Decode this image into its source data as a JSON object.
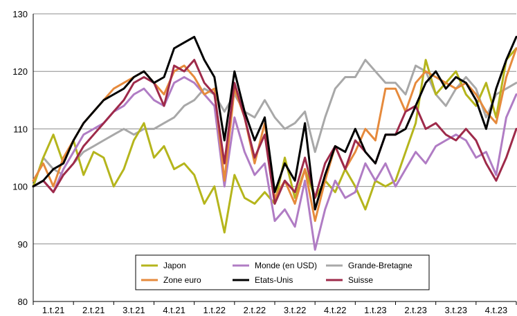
{
  "chart_data": {
    "type": "line",
    "title": "",
    "xlabel": "",
    "ylabel": "",
    "ylim": [
      80,
      130
    ],
    "yticks": [
      80,
      90,
      100,
      110,
      120,
      130
    ],
    "x_categories": [
      "1.t.21",
      "2.t.21",
      "3.t.21",
      "4.t.21",
      "1.t.22",
      "2.t.22",
      "3.t.22",
      "4.t.22",
      "1.t.23",
      "2.t.23",
      "3.t.23",
      "4.t.23"
    ],
    "x_range": [
      0,
      12
    ],
    "grid": "horizontal",
    "legend_position": "bottom-center",
    "series": [
      {
        "name": "Japon",
        "color": "#b5b51c",
        "x": [
          0,
          0.25,
          0.5,
          0.75,
          1,
          1.25,
          1.5,
          1.75,
          2,
          2.25,
          2.5,
          2.75,
          3,
          3.25,
          3.5,
          3.75,
          4,
          4.25,
          4.5,
          4.75,
          5,
          5.25,
          5.5,
          5.75,
          6,
          6.25,
          6.5,
          6.75,
          7,
          7.25,
          7.5,
          7.75,
          8,
          8.25,
          8.5,
          8.75,
          9,
          9.25,
          9.5,
          9.75,
          10,
          10.25,
          10.5,
          10.75,
          11,
          11.25,
          11.5,
          11.75,
          12
        ],
        "y": [
          100,
          105,
          109,
          104,
          108,
          102,
          106,
          105,
          100,
          103,
          108,
          111,
          105,
          107,
          103,
          104,
          102,
          97,
          100,
          92,
          102,
          98,
          97,
          99,
          97,
          105,
          98,
          103,
          98,
          101,
          99,
          103,
          100,
          96,
          101,
          100,
          101,
          106,
          111,
          122,
          116,
          118,
          120,
          116,
          114,
          118,
          112,
          122,
          124
        ]
      },
      {
        "name": "Zone euro",
        "color": "#e68a3c",
        "x": [
          0,
          0.25,
          0.5,
          0.75,
          1,
          1.25,
          1.5,
          1.75,
          2,
          2.25,
          2.5,
          2.75,
          3,
          3.25,
          3.5,
          3.75,
          4,
          4.25,
          4.5,
          4.75,
          5,
          5.25,
          5.5,
          5.75,
          6,
          6.25,
          6.5,
          6.75,
          7,
          7.25,
          7.5,
          7.75,
          8,
          8.25,
          8.5,
          8.75,
          9,
          9.25,
          9.5,
          9.75,
          10,
          10.25,
          10.5,
          10.75,
          11,
          11.25,
          11.5,
          11.75,
          12
        ],
        "y": [
          101,
          104,
          100,
          105,
          108,
          111,
          113,
          115,
          117,
          118,
          119,
          120,
          118,
          116,
          120,
          121,
          119,
          116,
          117,
          101,
          117,
          112,
          104,
          111,
          98,
          101,
          97,
          103,
          94,
          101,
          107,
          103,
          106,
          110,
          108,
          117,
          117,
          113,
          118,
          120,
          119,
          118,
          117,
          118,
          116,
          113,
          111,
          119,
          124
        ]
      },
      {
        "name": "Monde (en USD)",
        "color": "#b07cc4",
        "x": [
          0,
          0.25,
          0.5,
          0.75,
          1,
          1.25,
          1.5,
          1.75,
          2,
          2.25,
          2.5,
          2.75,
          3,
          3.25,
          3.5,
          3.75,
          4,
          4.25,
          4.5,
          4.75,
          5,
          5.25,
          5.5,
          5.75,
          6,
          6.25,
          6.5,
          6.75,
          7,
          7.25,
          7.5,
          7.75,
          8,
          8.25,
          8.5,
          8.75,
          9,
          9.25,
          9.5,
          9.75,
          10,
          10.25,
          10.5,
          10.75,
          11,
          11.25,
          11.5,
          11.75,
          12
        ],
        "y": [
          100,
          101,
          99,
          103,
          106,
          109,
          110,
          111,
          113,
          114,
          116,
          117,
          115,
          114,
          118,
          119,
          118,
          116,
          114,
          100,
          112,
          106,
          102,
          104,
          94,
          96,
          93,
          101,
          89,
          96,
          101,
          98,
          99,
          104,
          101,
          104,
          100,
          103,
          106,
          104,
          107,
          108,
          109,
          108,
          105,
          106,
          102,
          112,
          116
        ]
      },
      {
        "name": "Etats-Unis",
        "color": "#000000",
        "x": [
          0,
          0.25,
          0.5,
          0.75,
          1,
          1.25,
          1.5,
          1.75,
          2,
          2.25,
          2.5,
          2.75,
          3,
          3.25,
          3.5,
          3.75,
          4,
          4.25,
          4.5,
          4.75,
          5,
          5.25,
          5.5,
          5.75,
          6,
          6.25,
          6.5,
          6.75,
          7,
          7.25,
          7.5,
          7.75,
          8,
          8.25,
          8.5,
          8.75,
          9,
          9.25,
          9.5,
          9.75,
          10,
          10.25,
          10.5,
          10.75,
          11,
          11.25,
          11.5,
          11.75,
          12
        ],
        "y": [
          100,
          101,
          103,
          104,
          108,
          111,
          113,
          115,
          116,
          117,
          119,
          120,
          118,
          119,
          124,
          125,
          126,
          122,
          119,
          108,
          120,
          113,
          108,
          112,
          99,
          104,
          101,
          111,
          96,
          102,
          107,
          106,
          110,
          106,
          104,
          109,
          109,
          110,
          114,
          118,
          120,
          117,
          119,
          118,
          115,
          110,
          117,
          122,
          126
        ]
      },
      {
        "name": "Grande-Bretagne",
        "color": "#a8a8a8",
        "x": [
          0,
          0.25,
          0.5,
          0.75,
          1,
          1.25,
          1.5,
          1.75,
          2,
          2.25,
          2.5,
          2.75,
          3,
          3.25,
          3.5,
          3.75,
          4,
          4.25,
          4.5,
          4.75,
          5,
          5.25,
          5.5,
          5.75,
          6,
          6.25,
          6.5,
          6.75,
          7,
          7.25,
          7.5,
          7.75,
          8,
          8.25,
          8.5,
          8.75,
          9,
          9.25,
          9.5,
          9.75,
          10,
          10.25,
          10.5,
          10.75,
          11,
          11.25,
          11.5,
          11.75,
          12
        ],
        "y": [
          100,
          105,
          103,
          102,
          104,
          106,
          107,
          108,
          109,
          110,
          109,
          110,
          110,
          111,
          112,
          114,
          115,
          117,
          116,
          113,
          116,
          113,
          112,
          115,
          112,
          110,
          111,
          113,
          106,
          112,
          117,
          119,
          119,
          122,
          120,
          118,
          118,
          116,
          121,
          120,
          116,
          114,
          117,
          119,
          117,
          112,
          116,
          117,
          118
        ]
      },
      {
        "name": "Suisse",
        "color": "#9e2a4a",
        "x": [
          0,
          0.25,
          0.5,
          0.75,
          1,
          1.25,
          1.5,
          1.75,
          2,
          2.25,
          2.5,
          2.75,
          3,
          3.25,
          3.5,
          3.75,
          4,
          4.25,
          4.5,
          4.75,
          5,
          5.25,
          5.5,
          5.75,
          6,
          6.25,
          6.5,
          6.75,
          7,
          7.25,
          7.5,
          7.75,
          8,
          8.25,
          8.5,
          8.75,
          9,
          9.25,
          9.5,
          9.75,
          10,
          10.25,
          10.5,
          10.75,
          11,
          11.25,
          11.5,
          11.75,
          12
        ],
        "y": [
          100,
          101,
          99,
          102,
          104,
          107,
          109,
          111,
          113,
          115,
          118,
          119,
          118,
          114,
          121,
          120,
          122,
          118,
          116,
          104,
          118,
          112,
          105,
          109,
          97,
          101,
          99,
          105,
          98,
          104,
          107,
          103,
          108,
          106,
          104,
          109,
          109,
          113,
          114,
          110,
          111,
          109,
          108,
          110,
          108,
          104,
          101,
          105,
          110
        ]
      }
    ],
    "legend_order": [
      "Japon",
      "Monde (en USD)",
      "Grande-Bretagne",
      "Zone euro",
      "Etats-Unis",
      "Suisse"
    ]
  }
}
